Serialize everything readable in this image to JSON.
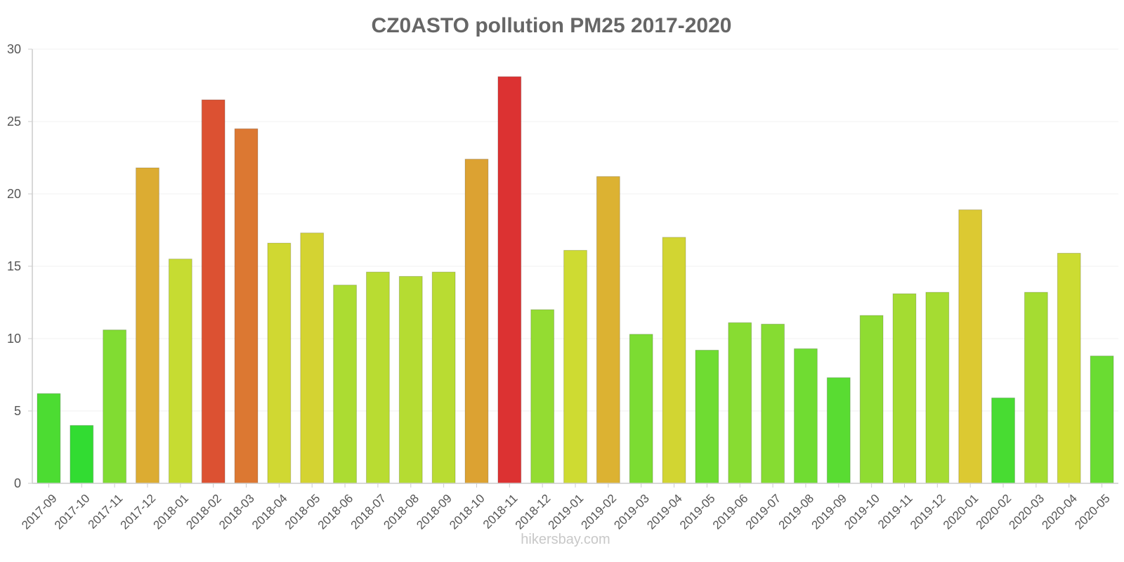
{
  "chart_data": {
    "type": "bar",
    "title": "CZ0ASTO pollution PM25 2017-2020",
    "xlabel": "",
    "ylabel": "",
    "ylim": [
      0,
      30
    ],
    "yticks": [
      0,
      5,
      10,
      15,
      20,
      25,
      30
    ],
    "grid": true,
    "categories": [
      "2017-09",
      "2017-10",
      "2017-11",
      "2017-12",
      "2018-01",
      "2018-02",
      "2018-03",
      "2018-04",
      "2018-05",
      "2018-06",
      "2018-07",
      "2018-08",
      "2018-09",
      "2018-10",
      "2018-11",
      "2018-12",
      "2019-01",
      "2019-02",
      "2019-03",
      "2019-04",
      "2019-05",
      "2019-06",
      "2019-07",
      "2019-08",
      "2019-09",
      "2019-10",
      "2019-11",
      "2019-12",
      "2020-01",
      "2020-02",
      "2020-03",
      "2020-04",
      "2020-05"
    ],
    "values": [
      6.2,
      4.0,
      10.6,
      21.8,
      15.5,
      26.5,
      24.5,
      16.6,
      17.3,
      13.7,
      14.6,
      14.3,
      14.6,
      22.4,
      28.1,
      12.0,
      16.1,
      21.2,
      10.3,
      17.0,
      9.2,
      11.1,
      11.0,
      9.3,
      7.3,
      11.6,
      13.1,
      13.2,
      18.9,
      5.9,
      13.2,
      15.9,
      8.8
    ]
  },
  "watermark": "hikersbay.com",
  "colors": {
    "title": "#666666",
    "axis": "#cccccc",
    "grid": "#f2f2f2",
    "tick_text": "#555555",
    "watermark": "#c8c8c8"
  }
}
